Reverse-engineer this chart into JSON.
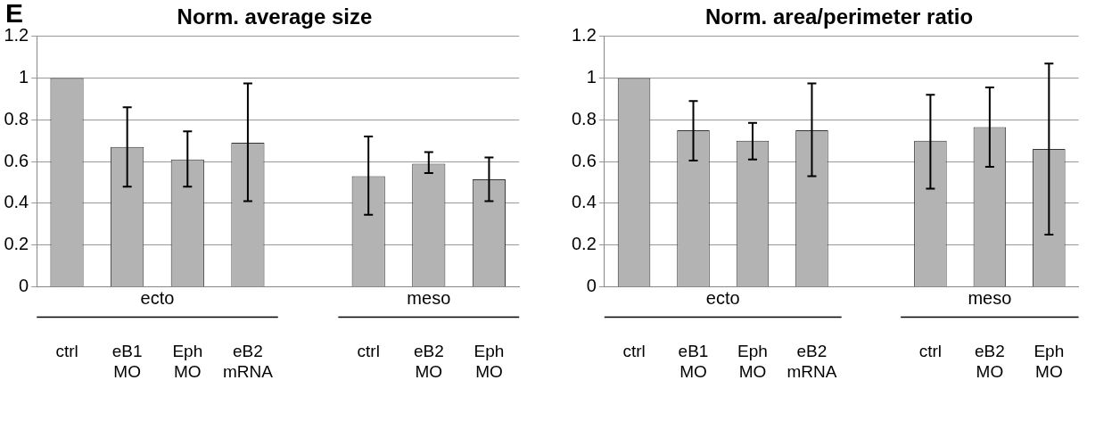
{
  "chart_data": [
    {
      "type": "bar",
      "title": "Norm. average size",
      "categories": [
        "ctrl",
        "eB1 MO",
        "Eph MO",
        "eB2 mRNA",
        null,
        "ctrl",
        "eB2 MO",
        "Eph MO"
      ],
      "values": [
        1.0,
        0.67,
        0.61,
        0.69,
        null,
        0.53,
        0.59,
        0.515
      ],
      "errors": [
        null,
        [
          0.48,
          0.86
        ],
        [
          0.48,
          0.745
        ],
        [
          0.41,
          0.975
        ],
        null,
        [
          0.345,
          0.72
        ],
        [
          0.545,
          0.645
        ],
        [
          0.41,
          0.62
        ]
      ],
      "color": "#b3b3b3",
      "ylim": [
        0,
        1.2
      ],
      "yticks": [
        0,
        0.2,
        0.4,
        0.6,
        0.8,
        1,
        1.2
      ],
      "grid": "y",
      "annotations": [
        "E",
        "ecto",
        "meso"
      ]
    },
    {
      "type": "bar",
      "title": "Norm. area/perimeter ratio",
      "categories": [
        "ctrl",
        "eB1 MO",
        "Eph MO",
        "eB2 mRNA",
        null,
        "ctrl",
        "eB2 MO",
        "Eph MO"
      ],
      "values": [
        1.0,
        0.75,
        0.7,
        0.75,
        null,
        0.7,
        0.765,
        0.66
      ],
      "errors": [
        null,
        [
          0.605,
          0.89
        ],
        [
          0.61,
          0.785
        ],
        [
          0.53,
          0.975
        ],
        null,
        [
          0.47,
          0.92
        ],
        [
          0.575,
          0.955
        ],
        [
          0.25,
          1.07
        ]
      ],
      "color": "#b3b3b3",
      "ylim": [
        0,
        1.2
      ],
      "yticks": [
        0,
        0.2,
        0.4,
        0.6,
        0.8,
        1,
        1.2
      ],
      "grid": "y",
      "annotations": [
        "ecto",
        "meso"
      ]
    }
  ]
}
